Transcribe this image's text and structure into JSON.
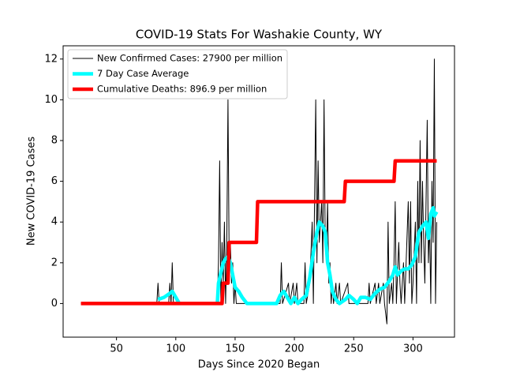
{
  "chart_data": {
    "type": "line",
    "title": "COVID-19 Stats For Washakie County, WY",
    "x_label": "Days Since 2020 Began",
    "y_label": "New COVID-19 Cases",
    "xlim": [
      5,
      335
    ],
    "ylim": [
      -1.65,
      12.65
    ],
    "xticks": [
      50,
      100,
      150,
      200,
      250,
      300
    ],
    "yticks": [
      0,
      2,
      4,
      6,
      8,
      10,
      12
    ],
    "legend": "upper left",
    "series": [
      {
        "name": "New Confirmed Cases: 27900 per million",
        "color": "#000000",
        "x": [
          20,
          84,
          85,
          86,
          94,
          95,
          96,
          97,
          98,
          135,
          136,
          137,
          138,
          139,
          140,
          141,
          142,
          143,
          144,
          145,
          146,
          147,
          148,
          149,
          150,
          151,
          188,
          189,
          190,
          195,
          196,
          199,
          200,
          202,
          203,
          208,
          209,
          210,
          213,
          215,
          216,
          218,
          219,
          220,
          221,
          222,
          223,
          224,
          225,
          226,
          227,
          228,
          229,
          230,
          231,
          232,
          233,
          235,
          236,
          238,
          239,
          245,
          246,
          262,
          263,
          264,
          268,
          269,
          271,
          272,
          275,
          276,
          278,
          279,
          280,
          282,
          283,
          284,
          285,
          286,
          288,
          289,
          290,
          292,
          293,
          296,
          297,
          298,
          299,
          300,
          302,
          303,
          304,
          305,
          306,
          307,
          308,
          309,
          310,
          312,
          313,
          314,
          315,
          316,
          317,
          318,
          319,
          320
        ],
        "values": [
          0,
          0,
          1,
          0,
          0,
          1,
          0,
          2,
          0,
          0,
          2,
          7,
          0,
          3,
          1,
          4,
          0,
          3,
          10,
          2,
          3,
          1,
          2,
          0,
          1,
          0,
          0,
          2,
          0,
          1,
          0,
          1,
          0,
          1,
          0,
          0,
          2,
          0,
          1,
          4,
          0,
          10,
          2,
          7,
          3,
          4,
          5,
          2,
          10,
          3,
          2,
          5,
          1,
          2,
          0,
          1,
          0,
          1,
          0,
          1,
          0,
          1,
          0,
          0,
          1,
          0,
          1,
          0,
          1,
          0,
          1,
          0,
          -1,
          4,
          0,
          1,
          0,
          2,
          5,
          0,
          3,
          1,
          0,
          2,
          0,
          5,
          1,
          5,
          0,
          1,
          4,
          0,
          6,
          2,
          8,
          2,
          6,
          3,
          1,
          9,
          2,
          4,
          0,
          6,
          3,
          12,
          0,
          4
        ]
      },
      {
        "name": "7 Day Case Average",
        "color": "#00ffff",
        "x": [
          85,
          90,
          95,
          97,
          100,
          103,
          104,
          135,
          136,
          138,
          140,
          142,
          144,
          146,
          148,
          150,
          153,
          156,
          160,
          185,
          188,
          191,
          194,
          197,
          200,
          203,
          206,
          210,
          213,
          216,
          219,
          221,
          224,
          226,
          228,
          230,
          232,
          235,
          238,
          243,
          246,
          250,
          253,
          256,
          260,
          264,
          268,
          272,
          276,
          280,
          283,
          285,
          287,
          290,
          293,
          296,
          299,
          302,
          305,
          308,
          311,
          313,
          315,
          317,
          318,
          320
        ],
        "values": [
          0.2,
          0.3,
          0.5,
          0.6,
          0.3,
          0,
          null,
          0,
          1,
          1.5,
          2,
          2.2,
          2.3,
          2,
          1.4,
          0.8,
          0.6,
          0.3,
          0,
          0,
          0.4,
          0.6,
          0.3,
          0,
          0.3,
          0,
          0.2,
          0.4,
          1.3,
          2.5,
          3.5,
          4,
          3.8,
          3.5,
          2,
          1.4,
          0.6,
          0.2,
          0,
          0.2,
          0.4,
          0.2,
          0,
          0.3,
          0.3,
          0.2,
          0.5,
          0.7,
          0.8,
          1.1,
          1.4,
          1.8,
          1.4,
          1.6,
          1.7,
          1.7,
          1.9,
          2.3,
          3.5,
          3.8,
          4,
          3.2,
          4.4,
          4.7,
          4.3,
          4.5
        ]
      },
      {
        "name": "Cumulative Deaths: 896.9 per million",
        "color": "#ff0000",
        "x": [
          20,
          139,
          140,
          144,
          145,
          146,
          168,
          169,
          242,
          243,
          284,
          285,
          320
        ],
        "values": [
          0,
          0,
          1,
          1,
          3,
          3,
          3,
          5,
          5,
          6,
          6,
          7,
          7
        ]
      }
    ]
  }
}
